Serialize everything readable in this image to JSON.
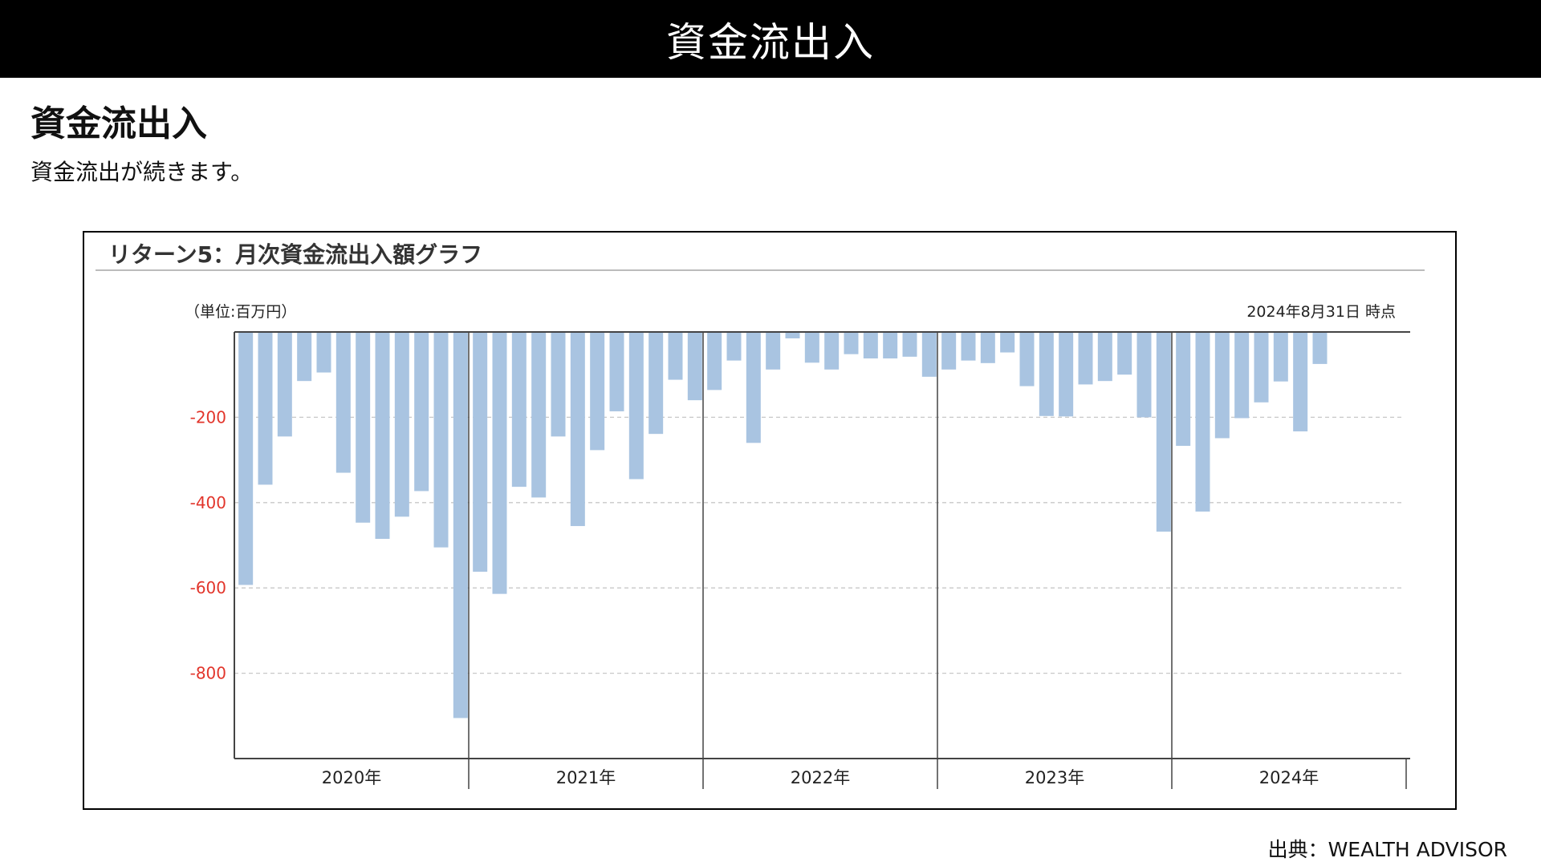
{
  "header": {
    "title": "資金流出入"
  },
  "section": {
    "heading": "資金流出入",
    "text": "資金流出が続きます。"
  },
  "chart": {
    "title": "リターン5：月次資金流出入額グラフ",
    "unit": "（単位:百万円）",
    "as_of": "2024年8月31日 時点"
  },
  "source": "出典：WEALTH ADVISOR",
  "colors": {
    "bar": "#a9c4e1",
    "tick": "#e2352b",
    "axis": "#444444",
    "grid": "#c8c8c8"
  },
  "chart_data": {
    "type": "bar",
    "title": "リターン5：月次資金流出入額グラフ",
    "xlabel": "",
    "ylabel": "",
    "ylim": [
      -1000,
      0
    ],
    "yticks": [
      -200,
      -400,
      -600,
      -800
    ],
    "grid": true,
    "groups": [
      "2020年",
      "2021年",
      "2022年",
      "2023年",
      "2024年"
    ],
    "categories": [
      "2020-01",
      "2020-02",
      "2020-03",
      "2020-04",
      "2020-05",
      "2020-06",
      "2020-07",
      "2020-08",
      "2020-09",
      "2020-10",
      "2020-11",
      "2020-12",
      "2021-01",
      "2021-02",
      "2021-03",
      "2021-04",
      "2021-05",
      "2021-06",
      "2021-07",
      "2021-08",
      "2021-09",
      "2021-10",
      "2021-11",
      "2021-12",
      "2022-01",
      "2022-02",
      "2022-03",
      "2022-04",
      "2022-05",
      "2022-06",
      "2022-07",
      "2022-08",
      "2022-09",
      "2022-10",
      "2022-11",
      "2022-12",
      "2023-01",
      "2023-02",
      "2023-03",
      "2023-04",
      "2023-05",
      "2023-06",
      "2023-07",
      "2023-08",
      "2023-09",
      "2023-10",
      "2023-11",
      "2023-12",
      "2024-01",
      "2024-02",
      "2024-03",
      "2024-04",
      "2024-05",
      "2024-06",
      "2024-07",
      "2024-08"
    ],
    "values": [
      -593,
      -358,
      -245,
      -115,
      -95,
      -330,
      -447,
      -485,
      -433,
      -373,
      -505,
      -905,
      -562,
      -614,
      -363,
      -388,
      -245,
      -455,
      -277,
      -186,
      -345,
      -239,
      -112,
      -160,
      -136,
      -67,
      -260,
      -88,
      -15,
      -72,
      -88,
      -52,
      -62,
      -62,
      -58,
      -105,
      -88,
      -67,
      -73,
      -48,
      -127,
      -197,
      -198,
      -123,
      -115,
      -100,
      -200,
      -468,
      -267,
      -421,
      -249,
      -202,
      -165,
      -116,
      -233,
      -75
    ]
  }
}
